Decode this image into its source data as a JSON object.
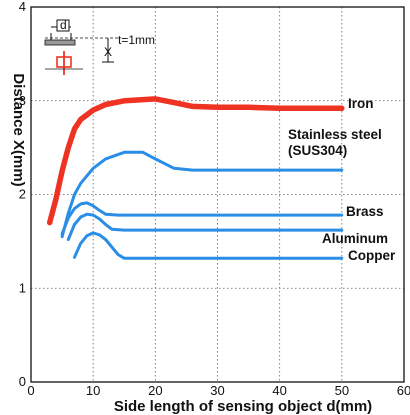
{
  "chart_data": {
    "type": "line",
    "xlabel": "Side length of sensing object d(mm)",
    "ylabel": "Distance X(mm)",
    "xlim": [
      0,
      60
    ],
    "ylim": [
      0,
      4
    ],
    "xticks": [
      "0",
      "10",
      "20",
      "30",
      "40",
      "50",
      "60"
    ],
    "yticks": [
      "0",
      "1",
      "2",
      "3",
      "4"
    ],
    "grid": true,
    "legend": "inline-right",
    "series": [
      {
        "name": "Iron",
        "color": "#ee3322",
        "x": [
          3,
          4,
          5,
          6,
          7,
          8,
          10,
          12,
          15,
          20,
          23,
          26,
          30,
          35,
          40,
          45,
          50
        ],
        "y": [
          1.7,
          1.95,
          2.25,
          2.5,
          2.7,
          2.8,
          2.9,
          2.96,
          3.0,
          3.02,
          2.98,
          2.94,
          2.93,
          2.93,
          2.92,
          2.92,
          2.92
        ]
      },
      {
        "name": "Stainless steel\n(SUS304)",
        "color": "#2a8ee6",
        "x": [
          5,
          6,
          7,
          8,
          10,
          12,
          15,
          18,
          20,
          23,
          26,
          30,
          40,
          50
        ],
        "y": [
          1.55,
          1.8,
          2.0,
          2.12,
          2.28,
          2.38,
          2.45,
          2.45,
          2.38,
          2.28,
          2.26,
          2.26,
          2.26,
          2.26
        ]
      },
      {
        "name": "Brass",
        "color": "#2a8ee6",
        "x": [
          5,
          6,
          7,
          8,
          9,
          10,
          11,
          12,
          14,
          20,
          30,
          40,
          50
        ],
        "y": [
          1.58,
          1.75,
          1.85,
          1.9,
          1.91,
          1.88,
          1.83,
          1.79,
          1.78,
          1.78,
          1.78,
          1.78,
          1.78
        ]
      },
      {
        "name": "Aluminum",
        "color": "#2a8ee6",
        "x": [
          6,
          7,
          8,
          9,
          10,
          11,
          12,
          13,
          15,
          20,
          30,
          40,
          50
        ],
        "y": [
          1.52,
          1.68,
          1.76,
          1.79,
          1.78,
          1.74,
          1.68,
          1.63,
          1.62,
          1.62,
          1.62,
          1.62,
          1.62
        ]
      },
      {
        "name": "Copper",
        "color": "#2a8ee6",
        "x": [
          7,
          8,
          9,
          10,
          11,
          12,
          13,
          14,
          15,
          20,
          30,
          40,
          50
        ],
        "y": [
          1.33,
          1.48,
          1.56,
          1.59,
          1.57,
          1.52,
          1.44,
          1.36,
          1.32,
          1.32,
          1.32,
          1.32,
          1.32
        ]
      }
    ]
  },
  "inset": {
    "d_label": "d",
    "t_label": "t=1mm",
    "x_label": "X"
  }
}
